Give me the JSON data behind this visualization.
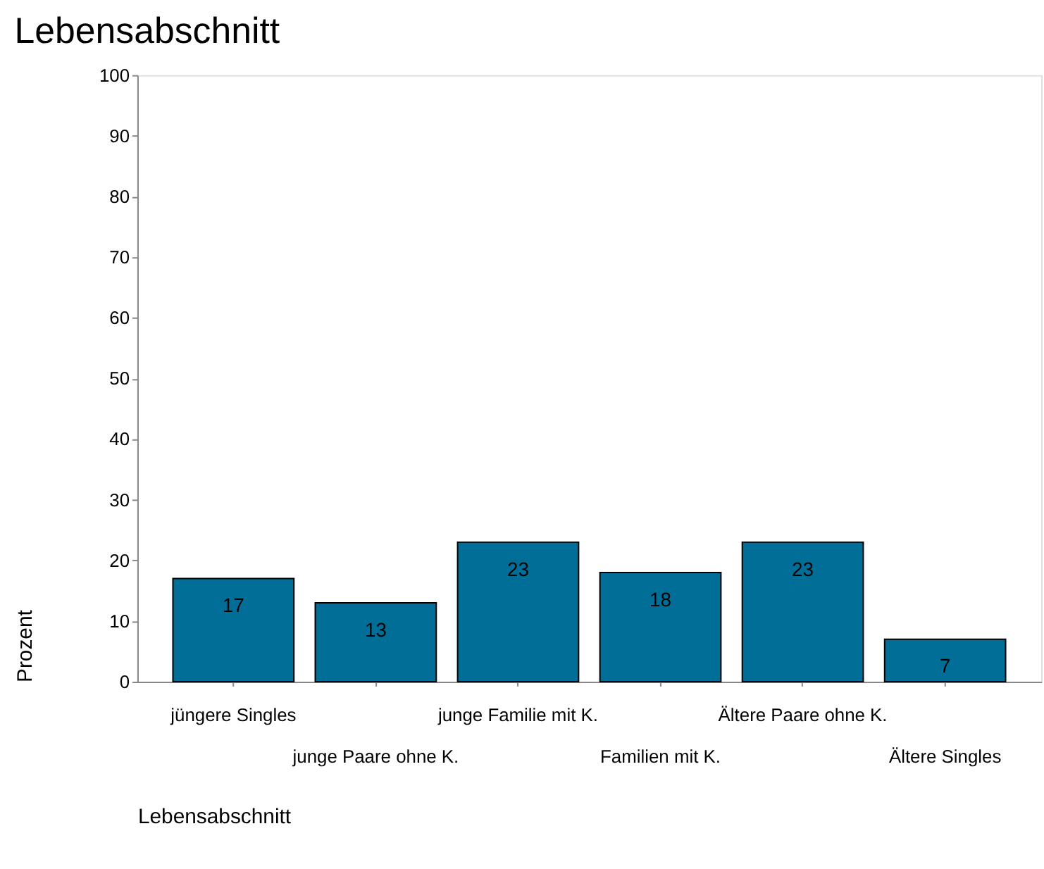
{
  "chart_data": {
    "type": "bar",
    "title": "Lebensabschnitt",
    "xlabel": "Lebensabschnitt",
    "ylabel": "Prozent",
    "categories": [
      "jüngere Singles",
      "junge Paare ohne K.",
      "junge Familie mit K.",
      "Familien mit K.",
      "Ältere Paare ohne K.",
      "Ältere Singles"
    ],
    "values": [
      17,
      13,
      23,
      18,
      23,
      7
    ],
    "color": "#006e96",
    "ylim": [
      0,
      100
    ],
    "yticks": [
      0,
      10,
      20,
      30,
      40,
      50,
      60,
      70,
      80,
      90,
      100
    ],
    "grid": false,
    "data_labels": true
  }
}
